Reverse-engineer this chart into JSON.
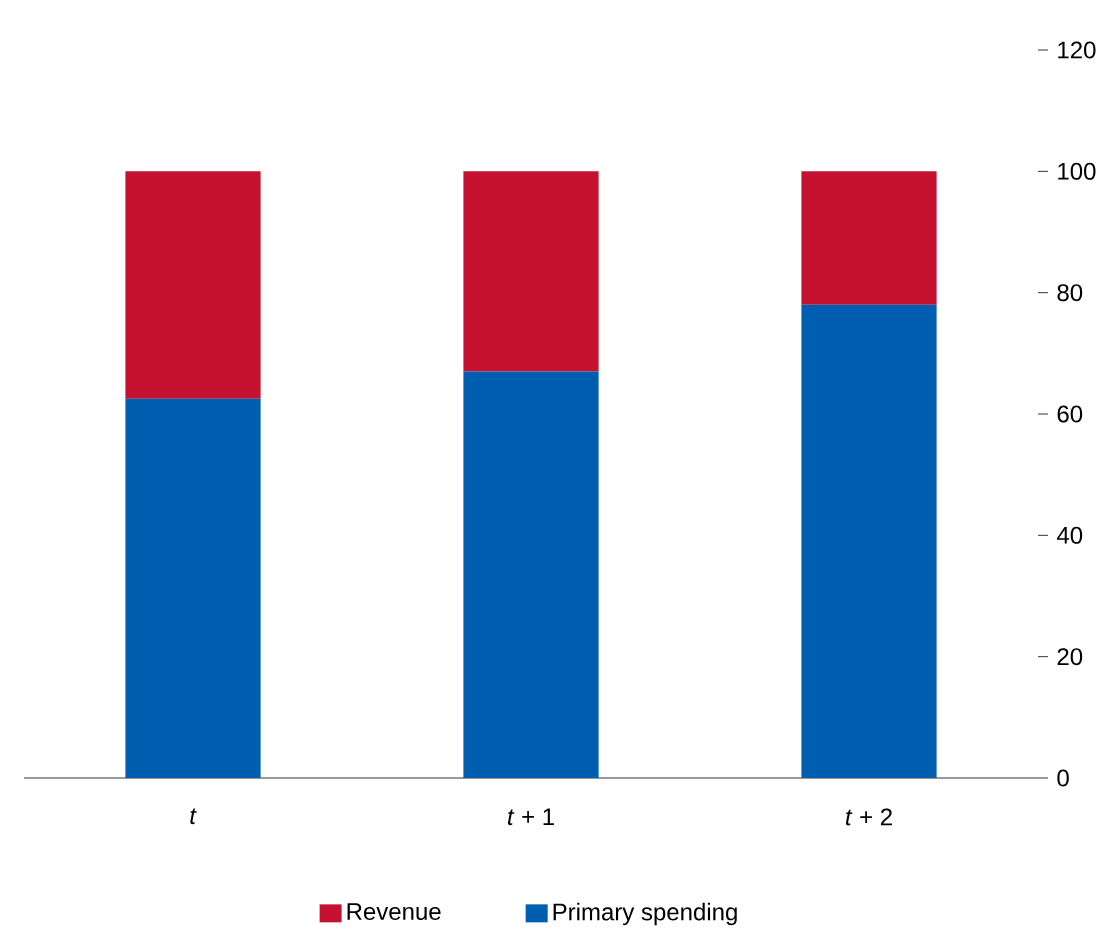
{
  "chart_data": {
    "type": "bar",
    "stacked": true,
    "categories": [
      "*t*",
      "*t* + 1",
      "*t* + 2"
    ],
    "series": [
      {
        "name": "Primary spending",
        "color": "#005eb0",
        "values": [
          62.5,
          67,
          78
        ]
      },
      {
        "name": "Revenue",
        "color": "#c41230",
        "values": [
          37.5,
          33,
          22
        ]
      }
    ],
    "ylim": [
      0,
      120
    ],
    "yticks": [
      0,
      20,
      40,
      60,
      80,
      100,
      120
    ],
    "grid": false,
    "legend": "bottom"
  }
}
